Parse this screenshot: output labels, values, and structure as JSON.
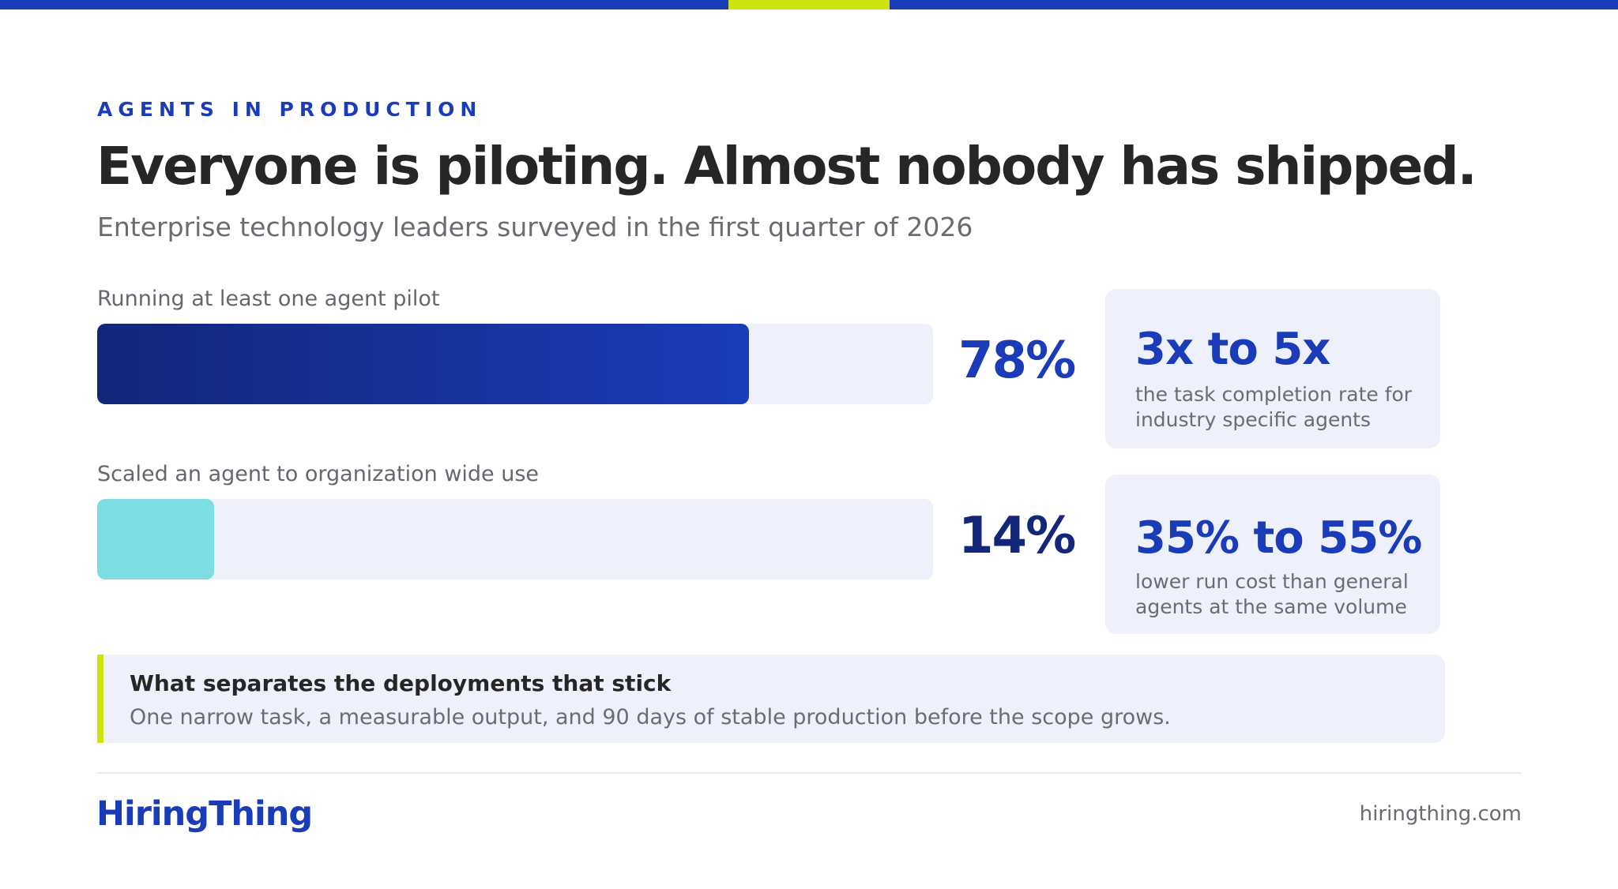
{
  "colors": {
    "brand_blue": "#1a3cb8",
    "navy": "#12267a",
    "lime": "#cde30d",
    "teal": "#7ddde3",
    "track": "#eef1fb",
    "heading": "#262626",
    "muted": "#6b6b72"
  },
  "header": {
    "eyebrow": "AGENTS IN PRODUCTION",
    "title": "Everyone is piloting. Almost nobody has shipped.",
    "subtitle": "Enterprise technology leaders surveyed in the first quarter of 2026"
  },
  "chart_data": {
    "type": "bar",
    "orientation": "horizontal",
    "unit": "%",
    "xlim": [
      0,
      100
    ],
    "categories": [
      "Running at least one agent pilot",
      "Scaled an agent to organization wide use"
    ],
    "values": [
      78,
      14
    ],
    "value_labels": [
      "78%",
      "14%"
    ],
    "bar_colors": [
      "#1a3cb8",
      "#7ddde3"
    ],
    "value_label_colors": [
      "#1a3cb8",
      "#12267a"
    ],
    "grid": false
  },
  "stats": [
    {
      "value": "3x to 5x",
      "description": "the task completion rate for industry specific agents"
    },
    {
      "value": "35% to 55%",
      "description": "lower run cost than general agents at the same volume"
    }
  ],
  "callout": {
    "title": "What separates the deployments that stick",
    "body": "One narrow task, a measurable output, and 90 days of stable production before the scope grows."
  },
  "footer": {
    "brand": "HiringThing",
    "site": "hiringthing.com"
  }
}
